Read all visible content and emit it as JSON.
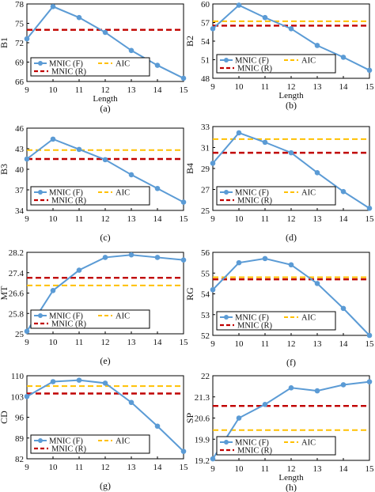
{
  "legend": {
    "mnic_f": "MNIC (F)",
    "aic": "AIC",
    "mnic_r": "MNIC (R)"
  },
  "colors": {
    "mnic_f": "#5b9bd5",
    "aic": "#ffc000",
    "mnic_r": "#c00000",
    "axis": "#000000"
  },
  "chart_data": [
    {
      "type": "line",
      "ylabel": "B1",
      "xlabel": "Length",
      "caption": "(a)",
      "x": [
        9,
        10,
        11,
        12,
        13,
        14,
        15
      ],
      "yticks": [
        "66",
        "69",
        "72",
        "75",
        "78"
      ],
      "ylim": [
        66,
        78
      ],
      "series": [
        {
          "name": "MNIC (F)",
          "values": [
            72.6,
            77.6,
            75.9,
            73.6,
            70.8,
            68.5,
            66.5
          ]
        }
      ],
      "reference_lines": {
        "aic": 74.0,
        "mnic_r": 74.0
      }
    },
    {
      "type": "line",
      "ylabel": "B2",
      "xlabel": "Length",
      "caption": "(b)",
      "x": [
        9,
        10,
        11,
        12,
        13,
        14,
        15
      ],
      "yticks": [
        "48",
        "51",
        "54",
        "57",
        "60"
      ],
      "ylim": [
        48,
        60
      ],
      "series": [
        {
          "name": "MNIC (F)",
          "values": [
            56.0,
            59.8,
            57.8,
            56.0,
            53.3,
            51.4,
            49.3
          ]
        }
      ],
      "reference_lines": {
        "aic": 57.2,
        "mnic_r": 56.5
      }
    },
    {
      "type": "line",
      "ylabel": "B3",
      "xlabel": "",
      "caption": "(c)",
      "x": [
        9,
        10,
        11,
        12,
        13,
        14,
        15
      ],
      "yticks": [
        "34",
        "37",
        "40",
        "43",
        "46"
      ],
      "ylim": [
        34,
        46
      ],
      "series": [
        {
          "name": "MNIC (F)",
          "values": [
            41.5,
            44.4,
            42.9,
            41.4,
            39.2,
            37.2,
            35.2
          ]
        }
      ],
      "reference_lines": {
        "aic": 42.8,
        "mnic_r": 41.5
      }
    },
    {
      "type": "line",
      "ylabel": "B4",
      "xlabel": "",
      "caption": "(d)",
      "x": [
        9,
        10,
        11,
        12,
        13,
        14,
        15
      ],
      "yticks": [
        "25",
        "27",
        "29",
        "31",
        "33"
      ],
      "ylim": [
        25,
        33
      ],
      "series": [
        {
          "name": "MNIC (F)",
          "values": [
            29.5,
            32.4,
            31.5,
            30.5,
            28.6,
            26.8,
            25.2
          ]
        }
      ],
      "reference_lines": {
        "aic": 31.8,
        "mnic_r": 30.5
      }
    },
    {
      "type": "line",
      "ylabel": "MT",
      "xlabel": "",
      "caption": "(e)",
      "x": [
        9,
        10,
        11,
        12,
        13,
        14,
        15
      ],
      "yticks": [
        "25",
        "25.8",
        "26.6",
        "27.4",
        "28.2"
      ],
      "ylim": [
        25,
        28.2
      ],
      "series": [
        {
          "name": "MNIC (F)",
          "values": [
            25.1,
            26.7,
            27.5,
            28.0,
            28.1,
            28.0,
            27.9
          ]
        }
      ],
      "reference_lines": {
        "aic": 26.9,
        "mnic_r": 27.2
      }
    },
    {
      "type": "line",
      "ylabel": "RG",
      "xlabel": "",
      "caption": "(f)",
      "x": [
        9,
        10,
        11,
        12,
        13,
        14,
        15
      ],
      "yticks": [
        "52",
        "53",
        "54",
        "55",
        "56"
      ],
      "ylim": [
        52,
        56
      ],
      "series": [
        {
          "name": "MNIC (F)",
          "values": [
            54.2,
            55.5,
            55.7,
            55.4,
            54.5,
            53.3,
            52.0
          ]
        }
      ],
      "reference_lines": {
        "aic": 54.8,
        "mnic_r": 54.7
      }
    },
    {
      "type": "line",
      "ylabel": "CD",
      "xlabel": "",
      "caption": "(g)",
      "x": [
        9,
        10,
        11,
        12,
        13,
        14,
        15
      ],
      "yticks": [
        "82",
        "89",
        "96",
        "103",
        "110"
      ],
      "ylim": [
        82,
        110
      ],
      "series": [
        {
          "name": "MNIC (F)",
          "values": [
            103,
            108,
            108.5,
            107.5,
            101,
            93,
            84.5
          ]
        }
      ],
      "reference_lines": {
        "aic": 106.5,
        "mnic_r": 104
      }
    },
    {
      "type": "line",
      "ylabel": "SP",
      "xlabel": "Length",
      "caption": "(h)",
      "x": [
        9,
        10,
        11,
        12,
        13,
        14,
        15
      ],
      "yticks": [
        "19.2",
        "19.9",
        "20.6",
        "21.3",
        "22"
      ],
      "ylim": [
        19.2,
        22
      ],
      "series": [
        {
          "name": "MNIC (F)",
          "values": [
            19.25,
            20.6,
            21.05,
            21.6,
            21.5,
            21.7,
            21.8
          ]
        }
      ],
      "reference_lines": {
        "aic": 20.2,
        "mnic_r": 21.0
      }
    }
  ]
}
